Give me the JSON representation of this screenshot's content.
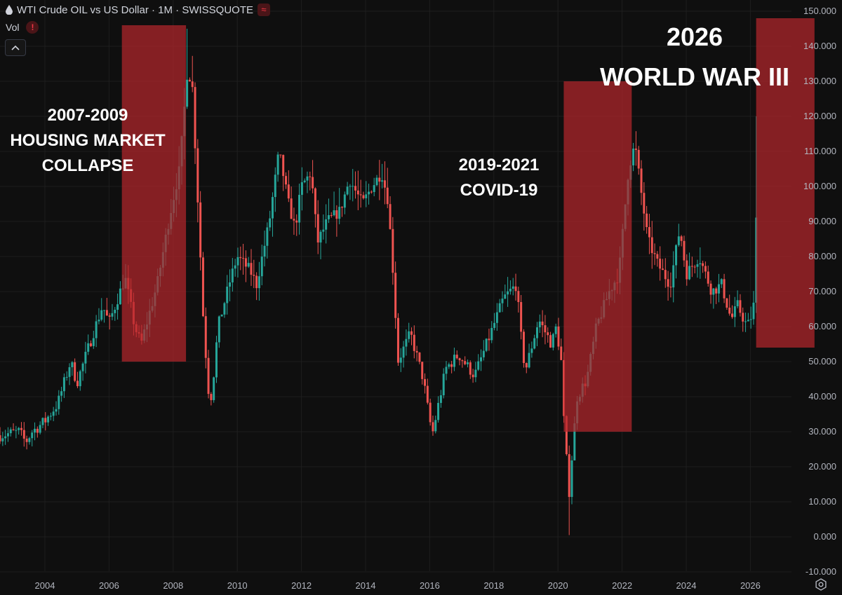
{
  "header": {
    "title": "WTI Crude OIL vs US Dollar · 1M · SWISSQUOTE",
    "wave_glyph": "≈",
    "vol_label": "Vol",
    "warn_glyph": "!"
  },
  "colors": {
    "background": "#0f0f0f",
    "up": "#26a69a",
    "down": "#ef5350",
    "highlight": "#b3262b",
    "grid": "#1e1e1e",
    "axis_text": "#b2b5be"
  },
  "icons": [
    "drop-icon",
    "wave-icon",
    "warning-icon",
    "chevron-up-icon",
    "settings-icon"
  ],
  "chart_data": {
    "type": "candlestick",
    "series_name": "WTI Crude OIL vs US Dollar",
    "interval": "1M",
    "source": "SWISSQUOTE",
    "x_ticks": [
      "2004",
      "2006",
      "2008",
      "2010",
      "2012",
      "2014",
      "2016",
      "2018",
      "2020",
      "2022",
      "2024",
      "2026"
    ],
    "x_range": [
      2002.6,
      2028.0
    ],
    "y_ticks": [
      "150.000",
      "140.000",
      "130.000",
      "120.000",
      "110.000",
      "100.000",
      "90.000",
      "80.000",
      "70.000",
      "60.000",
      "50.000",
      "40.000",
      "30.000",
      "20.000",
      "10.000",
      "0.000",
      "-10.000"
    ],
    "y_range": [
      -13,
      153
    ],
    "grid": true,
    "key_points": [
      [
        2002.6,
        29
      ],
      [
        2003.2,
        30
      ],
      [
        2003.4,
        27
      ],
      [
        2003.6,
        30
      ],
      [
        2004.0,
        33
      ],
      [
        2004.4,
        38
      ],
      [
        2004.8,
        50
      ],
      [
        2005.0,
        44
      ],
      [
        2005.5,
        58
      ],
      [
        2005.8,
        66
      ],
      [
        2006.0,
        61
      ],
      [
        2006.5,
        74
      ],
      [
        2006.8,
        60
      ],
      [
        2007.0,
        55
      ],
      [
        2007.5,
        72
      ],
      [
        2007.9,
        92
      ],
      [
        2008.2,
        105
      ],
      [
        2008.45,
        134
      ],
      [
        2008.6,
        128
      ],
      [
        2008.8,
        90
      ],
      [
        2008.95,
        60
      ],
      [
        2009.1,
        42
      ],
      [
        2009.2,
        40
      ],
      [
        2009.4,
        60
      ],
      [
        2009.8,
        74
      ],
      [
        2010.0,
        80
      ],
      [
        2010.4,
        76
      ],
      [
        2010.6,
        72
      ],
      [
        2011.0,
        90
      ],
      [
        2011.3,
        110
      ],
      [
        2011.6,
        95
      ],
      [
        2011.8,
        88
      ],
      [
        2012.0,
        100
      ],
      [
        2012.3,
        104
      ],
      [
        2012.5,
        84
      ],
      [
        2012.8,
        90
      ],
      [
        2013.2,
        93
      ],
      [
        2013.5,
        102
      ],
      [
        2013.9,
        95
      ],
      [
        2014.2,
        100
      ],
      [
        2014.5,
        104
      ],
      [
        2014.7,
        96
      ],
      [
        2014.9,
        70
      ],
      [
        2015.0,
        50
      ],
      [
        2015.4,
        58
      ],
      [
        2015.8,
        45
      ],
      [
        2016.0,
        33
      ],
      [
        2016.1,
        30
      ],
      [
        2016.5,
        48
      ],
      [
        2016.9,
        52
      ],
      [
        2017.4,
        46
      ],
      [
        2017.9,
        58
      ],
      [
        2018.3,
        68
      ],
      [
        2018.7,
        72
      ],
      [
        2018.9,
        52
      ],
      [
        2019.0,
        48
      ],
      [
        2019.4,
        62
      ],
      [
        2019.8,
        55
      ],
      [
        2019.95,
        60
      ],
      [
        2020.1,
        50
      ],
      [
        2020.2,
        30
      ],
      [
        2020.3,
        18
      ],
      [
        2020.36,
        12
      ],
      [
        2020.45,
        25
      ],
      [
        2020.6,
        40
      ],
      [
        2020.9,
        45
      ],
      [
        2021.2,
        60
      ],
      [
        2021.6,
        70
      ],
      [
        2021.9,
        75
      ],
      [
        2022.1,
        95
      ],
      [
        2022.2,
        105
      ],
      [
        2022.4,
        112
      ],
      [
        2022.6,
        98
      ],
      [
        2022.8,
        85
      ],
      [
        2023.1,
        78
      ],
      [
        2023.5,
        72
      ],
      [
        2023.8,
        88
      ],
      [
        2024.0,
        75
      ],
      [
        2024.4,
        80
      ],
      [
        2024.8,
        70
      ],
      [
        2025.1,
        72
      ],
      [
        2025.4,
        62
      ],
      [
        2025.6,
        66
      ],
      [
        2025.9,
        60
      ],
      [
        2026.0,
        62
      ],
      [
        2026.1,
        66
      ],
      [
        2026.2,
        95
      ]
    ],
    "annotations": [
      {
        "text": [
          "2007-2009",
          "HOUSING MARKET",
          "COLLAPSE"
        ],
        "range_x": [
          2006.4,
          2008.4
        ],
        "range_y": [
          50,
          146
        ]
      },
      {
        "text": [
          "2019-2021",
          "COVID-19"
        ],
        "range_x": [
          2020.18,
          2022.3
        ],
        "range_y": [
          30,
          130
        ]
      },
      {
        "text": [
          "2026",
          "WORLD WAR III"
        ],
        "range_x": [
          2026.18,
          2028.0
        ],
        "range_y": [
          54,
          148
        ]
      }
    ]
  }
}
